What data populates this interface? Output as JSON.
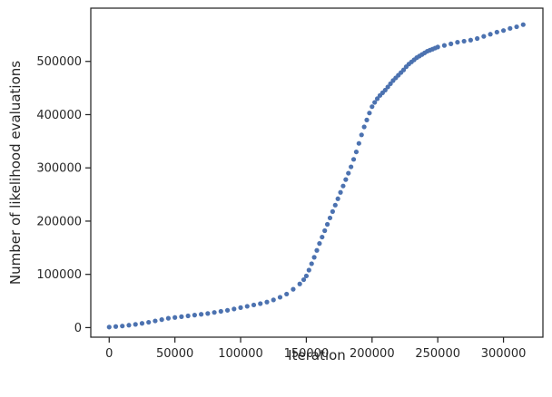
{
  "chart_data": {
    "type": "scatter",
    "title": "",
    "xlabel": "Iteration",
    "ylabel": "Number of likelihood evaluations",
    "xlim": [
      -14000,
      330000
    ],
    "ylim": [
      -18000,
      600000
    ],
    "xticks": [
      0,
      50000,
      100000,
      150000,
      200000,
      250000,
      300000
    ],
    "xtick_labels": [
      "0",
      "50000",
      "100000",
      "150000",
      "200000",
      "250000",
      "300000"
    ],
    "yticks": [
      0,
      100000,
      200000,
      300000,
      400000,
      500000
    ],
    "ytick_labels": [
      "0",
      "100000",
      "200000",
      "300000",
      "400000",
      "500000"
    ],
    "grid": false,
    "marker_color": "#4c72b0",
    "series": [
      {
        "x": [
          0,
          5000,
          10000,
          15000,
          20000,
          25000,
          30000,
          35000,
          40000,
          45000,
          50000,
          55000,
          60000,
          65000,
          70000,
          75000,
          80000,
          85000,
          90000,
          95000,
          100000,
          105000,
          110000,
          115000,
          120000,
          125000,
          130000,
          135000,
          140000,
          145000,
          148000,
          150000,
          152000,
          154000,
          156000,
          158000,
          160000,
          162000,
          164000,
          166000,
          168000,
          170000,
          172000,
          174000,
          176000,
          178000,
          180000,
          182000,
          184000,
          186000,
          188000,
          190000,
          192000,
          194000,
          196000,
          198000,
          200000,
          202000,
          204000,
          206000,
          208000,
          210000,
          212000,
          214000,
          216000,
          218000,
          220000,
          222000,
          224000,
          226000,
          228000,
          230000,
          232000,
          234000,
          236000,
          238000,
          240000,
          242000,
          244000,
          246000,
          248000,
          250000,
          255000,
          260000,
          265000,
          270000,
          275000,
          280000,
          285000,
          290000,
          295000,
          300000,
          305000,
          310000,
          315000
        ],
        "y": [
          1000,
          2000,
          3000,
          4500,
          6000,
          8000,
          10000,
          12500,
          15000,
          17500,
          19000,
          20500,
          22000,
          23500,
          25000,
          26500,
          28500,
          30500,
          32500,
          35000,
          37500,
          40000,
          42500,
          45000,
          48000,
          52000,
          57000,
          63000,
          72000,
          82000,
          90000,
          97000,
          108000,
          120000,
          132000,
          145000,
          158000,
          170000,
          182000,
          194000,
          206000,
          218000,
          230000,
          242000,
          254000,
          266000,
          278000,
          290000,
          302000,
          316000,
          330000,
          346000,
          362000,
          377000,
          390000,
          403000,
          415000,
          423000,
          430000,
          436000,
          441000,
          446000,
          452000,
          458000,
          464000,
          469000,
          474000,
          479000,
          484000,
          490000,
          495000,
          499000,
          503000,
          507000,
          510000,
          513000,
          516000,
          519000,
          521000,
          523000,
          525000,
          527000,
          530000,
          533000,
          536000,
          538000,
          540000,
          543000,
          547000,
          551000,
          555000,
          558000,
          562000,
          565000,
          569000
        ]
      }
    ]
  }
}
